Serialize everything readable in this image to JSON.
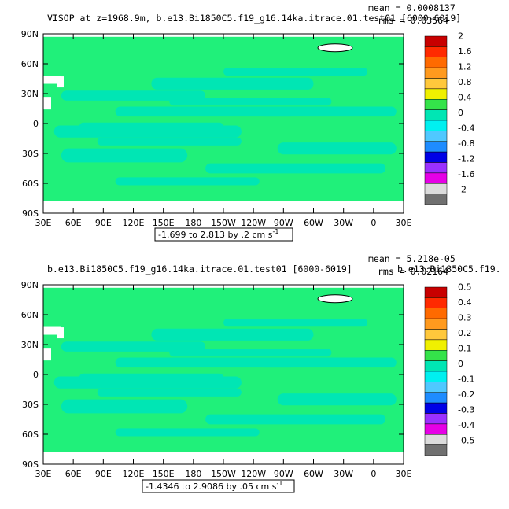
{
  "chart_data": [
    {
      "type": "heatmap",
      "title": "VISOP at z=1968.9m, b.e13.Bi1850C5.f19_g16.14ka.itrace.01.test01 [6000-6019]",
      "mean_label": "mean = 0.0008137",
      "rms_label": "rms = 0.03564",
      "x_ticks": [
        "30E",
        "60E",
        "90E",
        "120E",
        "150E",
        "180",
        "150W",
        "120W",
        "90W",
        "60W",
        "30W",
        "0",
        "30E"
      ],
      "y_ticks": [
        "90N",
        "60N",
        "30N",
        "0",
        "30S",
        "60S",
        "90S"
      ],
      "range_label": "-1.699 to 2.813 by .2 cm s",
      "range_sup": "-1",
      "colorbar": {
        "labels": [
          "2",
          "1.6",
          "1.2",
          "0.8",
          "0.4",
          "0",
          "-0.4",
          "-0.8",
          "-1.2",
          "-1.6",
          "-2"
        ],
        "colors": [
          "#c80000",
          "#ff2a00",
          "#ff6a00",
          "#ff9a1e",
          "#ffc83c",
          "#f0f000",
          "#34e34a",
          "#00e6b4",
          "#00f0f0",
          "#50c8ff",
          "#1e8cff",
          "#0000e6",
          "#9b30ff",
          "#e600e6",
          "#dcdcdc",
          "#707070"
        ]
      },
      "field": {
        "ocean_color": "#20f07a",
        "anomaly_color": "#00e6b4"
      }
    },
    {
      "type": "heatmap",
      "title": "b.e13.Bi1850C5.f19_g16.14ka.itrace.01.test01 [6000-6019]",
      "title2": "b.e13.Bi1850C5.f19.",
      "mean_label": "mean = 5.218e-05",
      "rms_label": "rms = 0.02164",
      "x_ticks": [
        "30E",
        "60E",
        "90E",
        "120E",
        "150E",
        "180",
        "150W",
        "120W",
        "90W",
        "60W",
        "30W",
        "0",
        "30E"
      ],
      "y_ticks": [
        "90N",
        "60N",
        "30N",
        "0",
        "30S",
        "60S",
        "90S"
      ],
      "range_label": "-1.4346 to 2.9086 by .05 cm s",
      "range_sup": "-1",
      "colorbar": {
        "labels": [
          "0.5",
          "0.4",
          "0.3",
          "0.2",
          "0.1",
          "0",
          "-0.1",
          "-0.2",
          "-0.3",
          "-0.4",
          "-0.5"
        ],
        "colors": [
          "#c80000",
          "#ff2a00",
          "#ff6a00",
          "#ff9a1e",
          "#ffc83c",
          "#f0f000",
          "#34e34a",
          "#00e6b4",
          "#00f0f0",
          "#50c8ff",
          "#1e8cff",
          "#0000e6",
          "#9b30ff",
          "#e600e6",
          "#dcdcdc",
          "#707070"
        ]
      },
      "field": {
        "ocean_color": "#20f07a",
        "anomaly_color": "#00e6b4"
      }
    }
  ]
}
